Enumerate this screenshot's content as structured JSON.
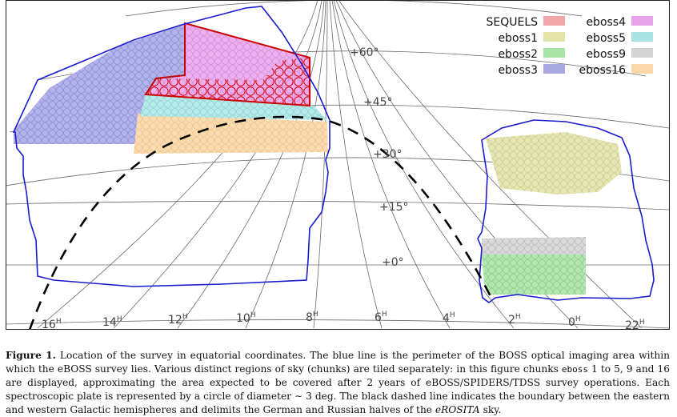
{
  "figure": {
    "ra_ticks": [
      {
        "hour": "16",
        "sup": "H"
      },
      {
        "hour": "14",
        "sup": "H"
      },
      {
        "hour": "12",
        "sup": "H"
      },
      {
        "hour": "10",
        "sup": "H"
      },
      {
        "hour": "8",
        "sup": "H"
      },
      {
        "hour": "6",
        "sup": "H"
      },
      {
        "hour": "4",
        "sup": "H"
      },
      {
        "hour": "2",
        "sup": "H"
      },
      {
        "hour": "0",
        "sup": "H"
      },
      {
        "hour": "22",
        "sup": "H"
      }
    ],
    "dec_ticks": [
      "+60°",
      "+45°",
      "+30°",
      "+15°",
      "+0°"
    ],
    "legend": [
      {
        "label": "SEQUELS",
        "color": "#f2a8a8"
      },
      {
        "label": "eboss4",
        "color": "#e8a3e8"
      },
      {
        "label": "eboss1",
        "color": "#e3e3a8"
      },
      {
        "label": "eboss5",
        "color": "#a8e3e3"
      },
      {
        "label": "eboss2",
        "color": "#a8e3a8"
      },
      {
        "label": "eboss9",
        "color": "#d4d4d4"
      },
      {
        "label": "eboss3",
        "color": "#a8a8e3"
      },
      {
        "label": "eboss16",
        "color": "#f8d8a8"
      }
    ],
    "colors": {
      "boss_perimeter": "#1010d0",
      "sequels_outline": "#cc0000",
      "galactic_boundary": "#000000",
      "grid": "#555555"
    }
  },
  "caption": {
    "label": "Figure 1.",
    "s1": " Location of the survey in equatorial coordinates. The blue line is the perimeter of the BOSS optical imaging area within which the eBOSS survey lies. Various distinct regions of sky (chunks) are tiled separately: in this figure chunks ",
    "code": "eboss",
    "s2": " 1 to 5, 9 and 16 are displayed, approximating the area expected to be covered after 2 years of eBOSS/SPIDERS/TDSS survey operations. Each spectroscopic plate is represented by a circle of diameter ∼ 3 deg. The black dashed line indicates the boundary between the eastern and western Galactic hemispheres and delimits the German and Russian halves of the ",
    "italic": "eROSITA",
    "s3": " sky."
  }
}
